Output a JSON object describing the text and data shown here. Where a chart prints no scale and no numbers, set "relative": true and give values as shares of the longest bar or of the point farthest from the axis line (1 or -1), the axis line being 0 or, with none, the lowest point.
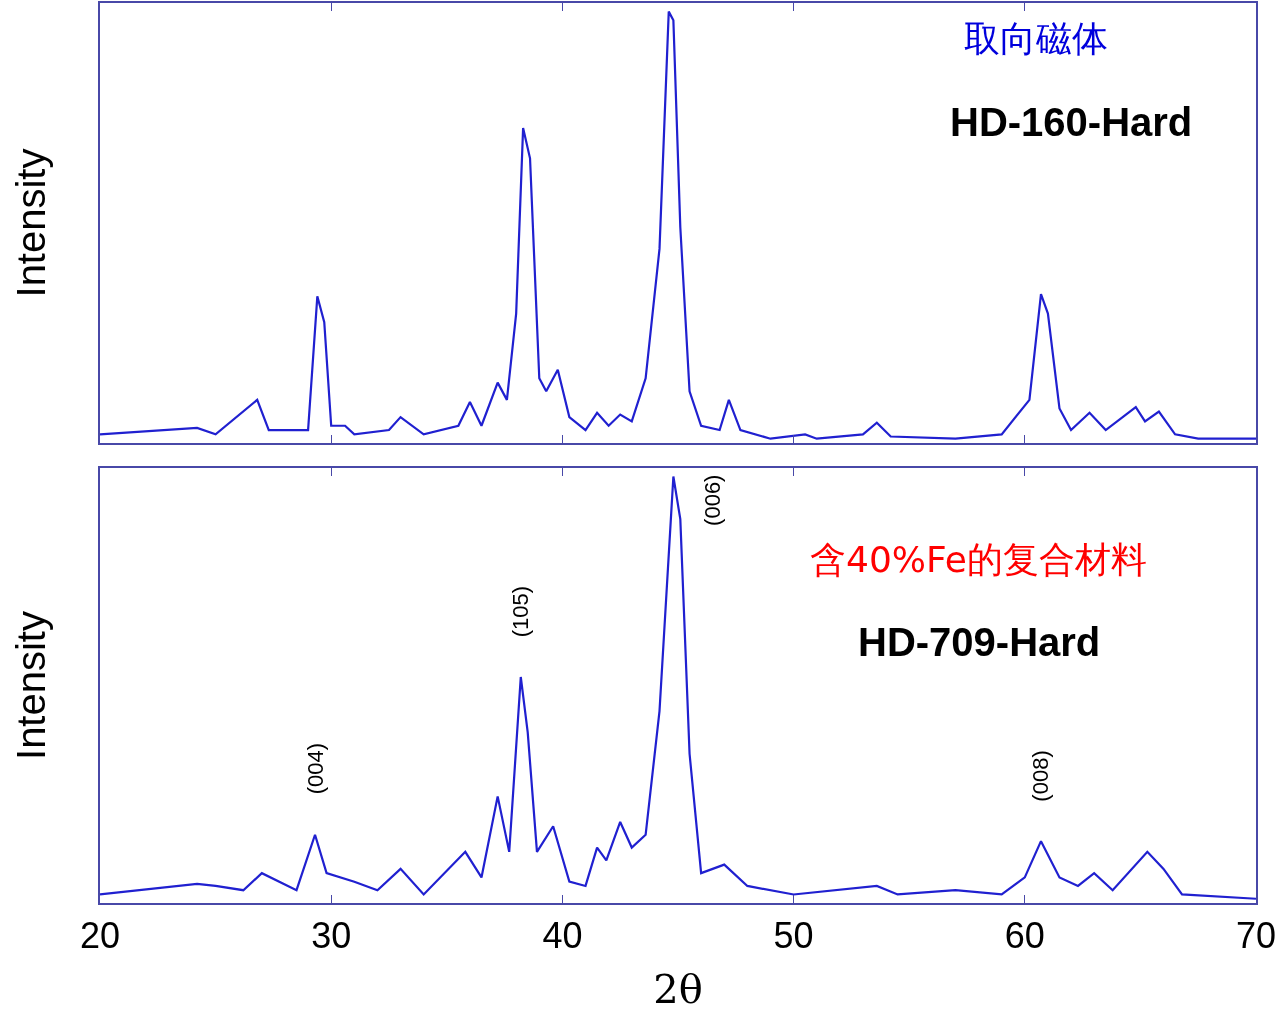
{
  "chart_data": [
    {
      "type": "line",
      "ylabel": "Intensity",
      "relative": true,
      "xlim": [
        20,
        70
      ],
      "xticks": [
        20,
        30,
        40,
        50,
        60,
        70
      ],
      "tick_labels": false,
      "grid": false,
      "annotations": [
        "取向磁体",
        "HD-160-Hard"
      ],
      "x": [
        20,
        24.2,
        25,
        26.8,
        27.3,
        29,
        29.4,
        29.7,
        30.0,
        30.6,
        31,
        32.5,
        33,
        34,
        35.5,
        36,
        36.5,
        37.2,
        37.6,
        38.0,
        38.3,
        38.6,
        39.0,
        39.3,
        39.8,
        40.3,
        41,
        41.5,
        42,
        42.5,
        43,
        43.6,
        44.2,
        44.6,
        44.8,
        45.1,
        45.5,
        46,
        46.8,
        47.2,
        47.7,
        49,
        50.5,
        51,
        53,
        53.6,
        54.2,
        57,
        59,
        60.2,
        60.7,
        61.0,
        61.5,
        62,
        62.8,
        63.5,
        64.8,
        65.2,
        65.8,
        66.5,
        67.5,
        70
      ],
      "series": [
        {
          "color": "#2020d0",
          "values": [
            0.02,
            0.035,
            0.02,
            0.1,
            0.03,
            0.03,
            0.34,
            0.28,
            0.04,
            0.04,
            0.02,
            0.03,
            0.06,
            0.02,
            0.04,
            0.095,
            0.04,
            0.14,
            0.1,
            0.3,
            0.73,
            0.66,
            0.15,
            0.12,
            0.17,
            0.06,
            0.03,
            0.07,
            0.04,
            0.066,
            0.05,
            0.15,
            0.45,
            1.0,
            0.98,
            0.5,
            0.12,
            0.04,
            0.03,
            0.1,
            0.03,
            0.01,
            0.02,
            0.01,
            0.02,
            0.047,
            0.015,
            0.01,
            0.02,
            0.1,
            0.345,
            0.3,
            0.08,
            0.03,
            0.07,
            0.03,
            0.083,
            0.05,
            0.073,
            0.02,
            0.01,
            0.01
          ]
        }
      ]
    },
    {
      "type": "line",
      "xlabel": "2θ",
      "ylabel": "Intensity",
      "relative": true,
      "xlim": [
        20,
        70
      ],
      "xticks": [
        20,
        30,
        40,
        50,
        60,
        70
      ],
      "tick_labels": "x",
      "grid": false,
      "annotations": [
        "含40%Fe的复合材料",
        "HD-709-Hard",
        {
          "text": "(004)",
          "x": 29.3,
          "y": 0.16
        },
        {
          "text": "(105)",
          "x": 38.2,
          "y": 0.53
        },
        {
          "text": "(006)",
          "x": 44.8,
          "y": 1.0
        },
        {
          "text": "(008)",
          "x": 60.7,
          "y": 0.145
        }
      ],
      "x": [
        20,
        24.2,
        25,
        26.2,
        27,
        28.5,
        29.3,
        29.8,
        31,
        32,
        33,
        34,
        35.8,
        36.5,
        37.2,
        37.7,
        38.2,
        38.5,
        38.9,
        39.6,
        40.3,
        41,
        41.5,
        41.9,
        42.5,
        43,
        43.6,
        44.2,
        44.8,
        45.1,
        45.5,
        46,
        47,
        48,
        50,
        53.6,
        54.5,
        57,
        59,
        60,
        60.7,
        61.5,
        62.3,
        63,
        63.8,
        65.3,
        66,
        66.8,
        70
      ],
      "series": [
        {
          "color": "#2020d0",
          "values": [
            0.02,
            0.045,
            0.04,
            0.03,
            0.07,
            0.03,
            0.16,
            0.07,
            0.05,
            0.03,
            0.08,
            0.02,
            0.12,
            0.06,
            0.25,
            0.12,
            0.53,
            0.4,
            0.12,
            0.18,
            0.05,
            0.04,
            0.13,
            0.1,
            0.19,
            0.13,
            0.16,
            0.45,
            1.0,
            0.9,
            0.35,
            0.07,
            0.09,
            0.04,
            0.02,
            0.04,
            0.02,
            0.03,
            0.02,
            0.06,
            0.145,
            0.06,
            0.04,
            0.07,
            0.03,
            0.12,
            0.08,
            0.02,
            0.01
          ]
        }
      ]
    }
  ]
}
